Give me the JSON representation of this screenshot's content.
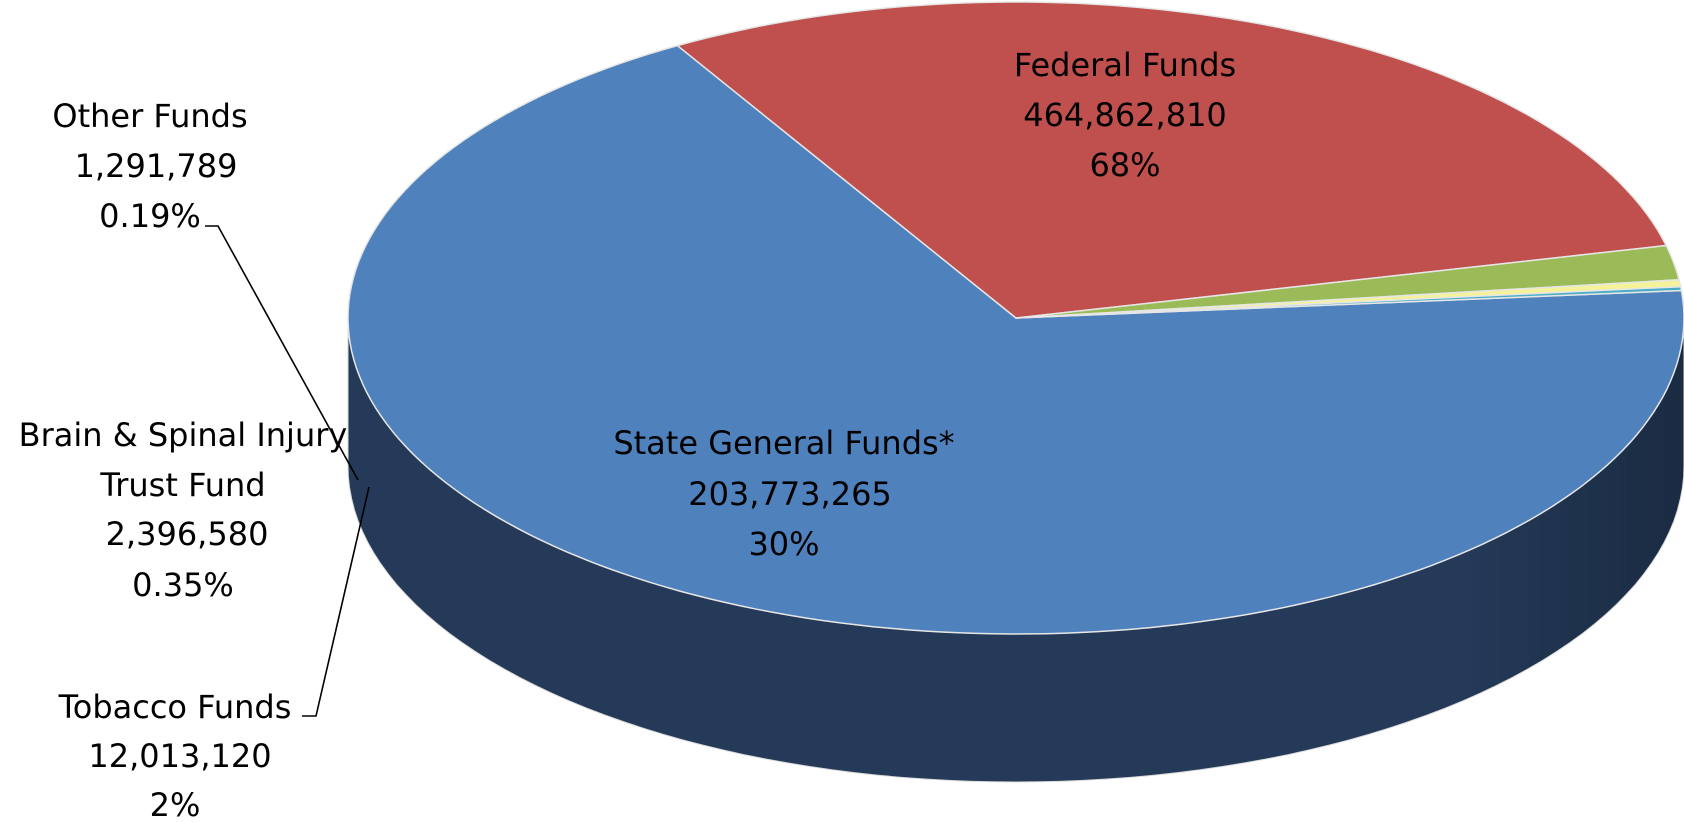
{
  "chart_data": {
    "type": "pie",
    "style": "3d",
    "title": "",
    "slices": [
      {
        "name": "Federal Funds",
        "value": 464862810,
        "value_label": "464,862,810",
        "percent_label": "68%",
        "color": "#4f81bd",
        "side_color": "#1f334d"
      },
      {
        "name": "State General Funds*",
        "value": 203773265,
        "value_label": "203,773,265",
        "percent_label": "30%",
        "color": "#c0504d",
        "side_color": "#8a2e2b"
      },
      {
        "name": "Tobacco Funds",
        "value": 12013120,
        "value_label": "12,013,120",
        "percent_label": "2%",
        "color": "#9bbb59",
        "side_color": "#5d7a28"
      },
      {
        "name": "Brain & Spinal Injury Trust Fund",
        "name_lines": [
          "Brain & Spinal Injury",
          "Trust Fund"
        ],
        "value": 2396580,
        "value_label": "2,396,580",
        "percent_label": "0.35%",
        "color": "#f5f29a",
        "side_color": "#b7b45f"
      },
      {
        "name": "Other Funds",
        "value": 1291789,
        "value_label": "1,291,789",
        "percent_label": "0.19%",
        "color": "#4bacc6",
        "side_color": "#2a7386"
      }
    ]
  }
}
